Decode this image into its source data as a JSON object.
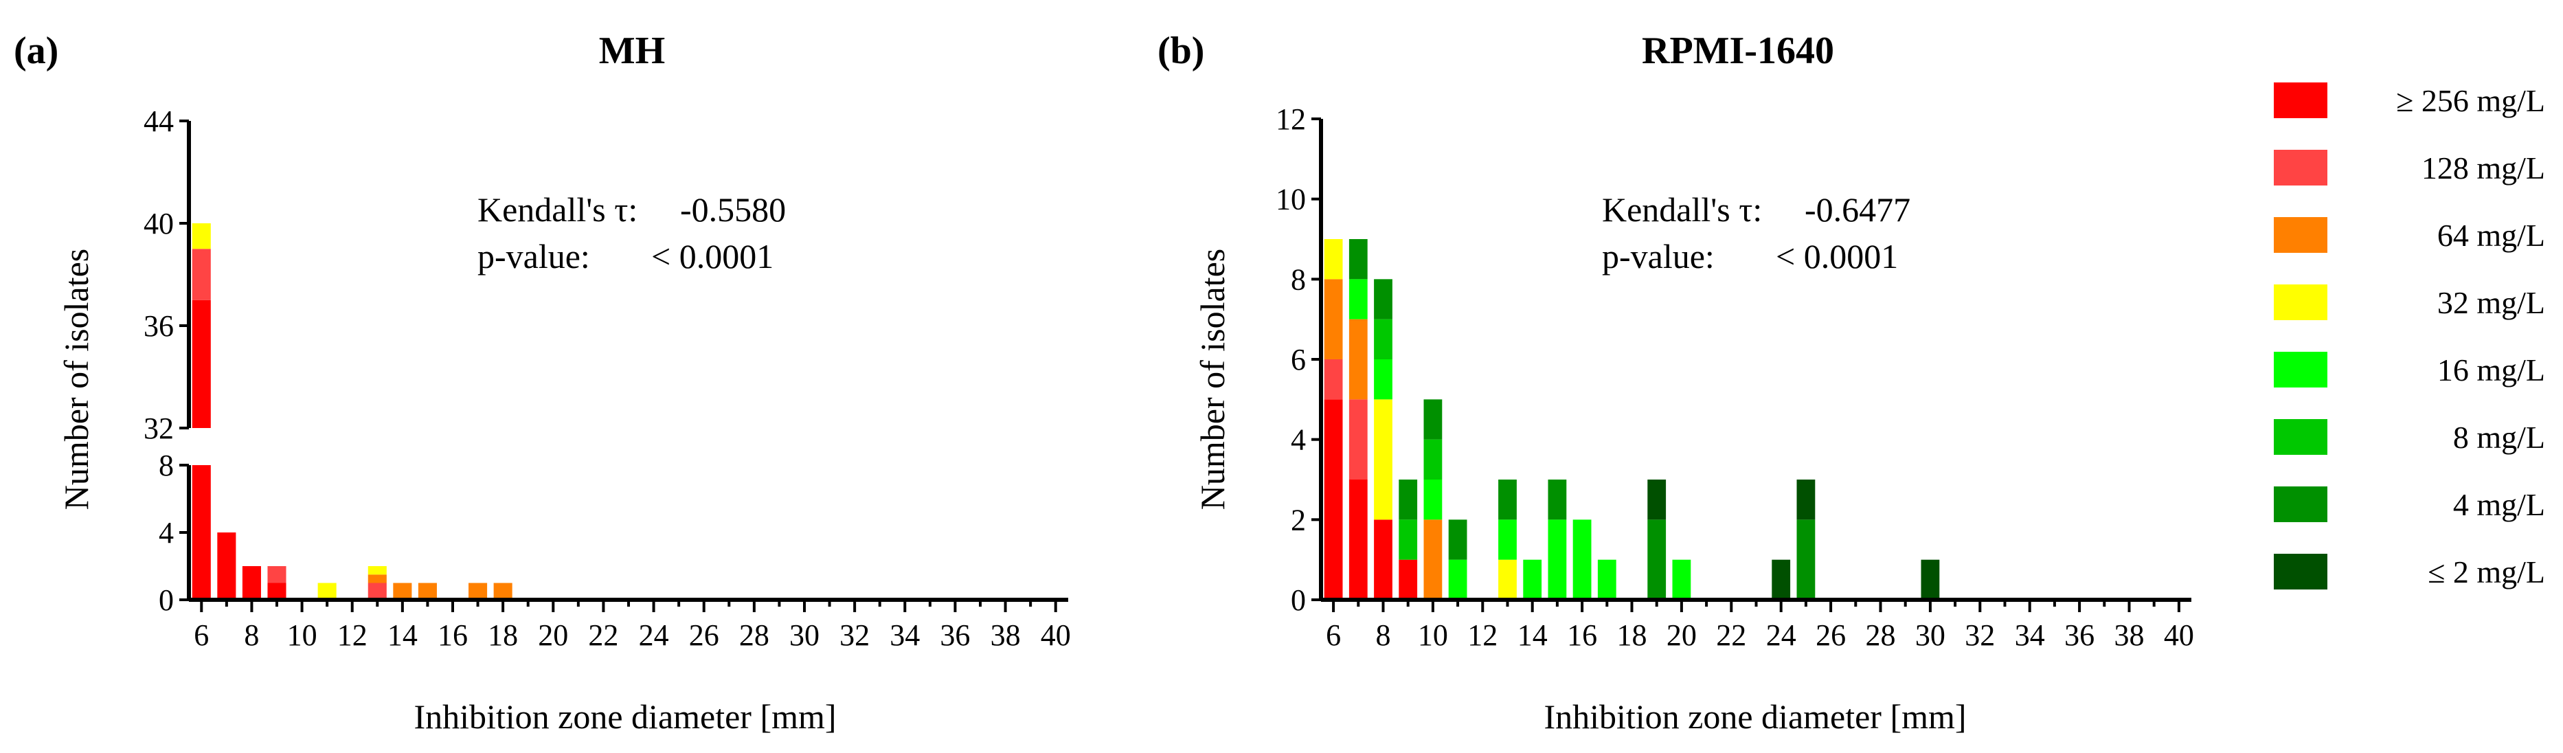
{
  "chart_data": [
    {
      "type": "bar",
      "stacked": true,
      "panel_label": "(a)",
      "title": "MH",
      "xlabel": "Inhibition zone diameter [mm]",
      "ylabel": "Number of isolates",
      "x_ticks": [
        "6",
        "8",
        "10",
        "12",
        "14",
        "16",
        "18",
        "20",
        "22",
        "24",
        "26",
        "28",
        "30",
        "32",
        "34",
        "36",
        "38",
        "40"
      ],
      "xlim": [
        5.5,
        40.5
      ],
      "y_axis_break": {
        "lower": [
          0,
          8
        ],
        "upper": [
          32,
          44
        ]
      },
      "y_ticks_lower": [
        "0",
        "4",
        "8"
      ],
      "y_ticks_upper": [
        "32",
        "36",
        "40",
        "44"
      ],
      "annotation": {
        "tau_label": "Kendall's τ:",
        "tau_value": "-0.5580",
        "p_label": "p-value:",
        "p_value": "< 0.0001"
      },
      "x": [
        6,
        7,
        8,
        9,
        11,
        13,
        14,
        15,
        17,
        18
      ],
      "series": [
        {
          "name": "≥ 256 mg/L",
          "values": [
            37,
            4,
            2,
            1,
            0,
            0,
            0,
            0,
            0,
            0
          ]
        },
        {
          "name": "128 mg/L",
          "values": [
            2,
            0,
            0,
            1,
            0,
            1,
            0,
            0,
            0,
            0
          ]
        },
        {
          "name": "64 mg/L",
          "values": [
            0,
            0,
            0,
            0,
            0,
            0.5,
            1,
            1,
            1,
            1
          ]
        },
        {
          "name": "32 mg/L",
          "values": [
            1,
            0,
            0,
            0,
            1,
            0.5,
            0,
            0,
            0,
            0
          ]
        },
        {
          "name": "16 mg/L",
          "values": [
            0,
            0,
            0,
            0,
            0,
            0,
            0,
            0,
            0,
            0
          ]
        },
        {
          "name": "8 mg/L",
          "values": [
            0,
            0,
            0,
            0,
            0,
            0,
            0,
            0,
            0,
            0
          ]
        },
        {
          "name": "4 mg/L",
          "values": [
            0,
            0,
            0,
            0,
            0,
            0,
            0,
            0,
            0,
            0
          ]
        },
        {
          "name": "≤ 2 mg/L",
          "values": [
            0,
            0,
            0,
            0,
            0,
            0,
            0,
            0,
            0,
            0
          ]
        }
      ]
    },
    {
      "type": "bar",
      "stacked": true,
      "panel_label": "(b)",
      "title": "RPMI-1640",
      "xlabel": "Inhibition zone diameter [mm]",
      "ylabel": "Number of isolates",
      "x_ticks": [
        "6",
        "8",
        "10",
        "12",
        "14",
        "16",
        "18",
        "20",
        "22",
        "24",
        "26",
        "28",
        "30",
        "32",
        "34",
        "36",
        "38",
        "40"
      ],
      "xlim": [
        5.5,
        40.5
      ],
      "ylim": [
        0,
        12
      ],
      "y_ticks": [
        "0",
        "2",
        "4",
        "6",
        "8",
        "10",
        "12"
      ],
      "annotation": {
        "tau_label": "Kendall's τ:",
        "tau_value": "-0.6477",
        "p_label": "p-value:",
        "p_value": "< 0.0001"
      },
      "x": [
        6,
        7,
        8,
        9,
        10,
        11,
        13,
        14,
        15,
        16,
        17,
        19,
        20,
        24,
        25,
        30
      ],
      "series": [
        {
          "name": "≥ 256 mg/L",
          "values": [
            5,
            3,
            2,
            1,
            0,
            0,
            0,
            0,
            0,
            0,
            0,
            0,
            0,
            0,
            0,
            0
          ]
        },
        {
          "name": "128 mg/L",
          "values": [
            1,
            2,
            0,
            0,
            0,
            0,
            0,
            0,
            0,
            0,
            0,
            0,
            0,
            0,
            0,
            0
          ]
        },
        {
          "name": "64 mg/L",
          "values": [
            2,
            2,
            0,
            0,
            2,
            0,
            0,
            0,
            0,
            0,
            0,
            0,
            0,
            0,
            0,
            0
          ]
        },
        {
          "name": "32 mg/L",
          "values": [
            1,
            0,
            3,
            0,
            0,
            0,
            1,
            0,
            0,
            0,
            0,
            0,
            0,
            0,
            0,
            0
          ]
        },
        {
          "name": "16 mg/L",
          "values": [
            0,
            1,
            1,
            0,
            1,
            1,
            1,
            1,
            2,
            2,
            1,
            0,
            1,
            0,
            0,
            0
          ]
        },
        {
          "name": "8 mg/L",
          "values": [
            0,
            0,
            1,
            1,
            1,
            0,
            0,
            0,
            0,
            0,
            0,
            0,
            0,
            0,
            0,
            0
          ]
        },
        {
          "name": "4 mg/L",
          "values": [
            0,
            1,
            1,
            1,
            1,
            1,
            1,
            0,
            1,
            0,
            0,
            2,
            0,
            0,
            2,
            0
          ]
        },
        {
          "name": "≤ 2 mg/L",
          "values": [
            0,
            0,
            0,
            0,
            0,
            0,
            0,
            0,
            0,
            0,
            0,
            1,
            0,
            1,
            1,
            1
          ]
        }
      ]
    }
  ],
  "legend": {
    "labels": [
      "≥ 256 mg/L",
      "128 mg/L",
      "64 mg/L",
      "32 mg/L",
      "16 mg/L",
      "8 mg/L",
      "4 mg/L",
      "≤ 2 mg/L"
    ],
    "colors": [
      "#ff0000",
      "#ff4444",
      "#ff8000",
      "#ffff00",
      "#00ff00",
      "#00c800",
      "#009000",
      "#005000"
    ]
  }
}
